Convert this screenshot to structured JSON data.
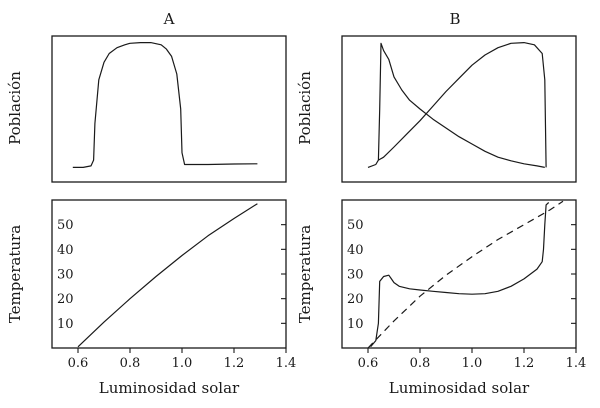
{
  "chart_data": [
    {
      "id": "A-top",
      "type": "line",
      "column_title": "A",
      "ylabel": "Población",
      "xlim": [
        0.5,
        1.4
      ],
      "ylim": [
        0,
        1
      ],
      "show_ticks": false,
      "series": [
        {
          "style": "solid",
          "x": [
            0.58,
            0.62,
            0.65,
            0.66,
            0.665,
            0.68,
            0.7,
            0.72,
            0.75,
            0.78,
            0.8,
            0.84,
            0.88,
            0.92,
            0.94,
            0.96,
            0.98,
            0.995,
            1.0,
            1.01,
            1.05,
            1.1,
            1.2,
            1.29
          ],
          "y": [
            0.1,
            0.1,
            0.11,
            0.15,
            0.4,
            0.7,
            0.82,
            0.88,
            0.92,
            0.94,
            0.95,
            0.955,
            0.955,
            0.94,
            0.91,
            0.86,
            0.74,
            0.5,
            0.2,
            0.12,
            0.12,
            0.12,
            0.123,
            0.125
          ]
        }
      ]
    },
    {
      "id": "B-top",
      "type": "line",
      "column_title": "B",
      "ylabel": "Población",
      "xlim": [
        0.5,
        1.4
      ],
      "ylim": [
        0,
        1
      ],
      "show_ticks": false,
      "series": [
        {
          "style": "solid",
          "x": [
            0.6,
            0.63,
            0.64,
            0.645,
            0.65,
            0.66,
            0.68,
            0.7,
            0.73,
            0.76,
            0.8,
            0.85,
            0.9,
            0.95,
            1.0,
            1.05,
            1.1,
            1.15,
            1.2,
            1.25,
            1.28
          ],
          "y": [
            0.1,
            0.12,
            0.15,
            0.5,
            0.95,
            0.9,
            0.84,
            0.72,
            0.63,
            0.56,
            0.5,
            0.43,
            0.37,
            0.31,
            0.26,
            0.21,
            0.17,
            0.145,
            0.125,
            0.11,
            0.1
          ]
        },
        {
          "style": "solid",
          "x": [
            0.64,
            0.66,
            0.7,
            0.75,
            0.8,
            0.85,
            0.9,
            0.95,
            1.0,
            1.05,
            1.1,
            1.15,
            1.2,
            1.24,
            1.27,
            1.28,
            1.285
          ],
          "y": [
            0.15,
            0.17,
            0.24,
            0.33,
            0.42,
            0.52,
            0.62,
            0.71,
            0.8,
            0.87,
            0.92,
            0.95,
            0.955,
            0.94,
            0.88,
            0.7,
            0.1
          ]
        }
      ]
    },
    {
      "id": "A-bottom",
      "type": "line",
      "xlabel": "Luminosidad solar",
      "ylabel": "Temperatura",
      "xlim": [
        0.5,
        1.4
      ],
      "ylim": [
        0,
        60
      ],
      "show_ticks": true,
      "xticks": [
        0.6,
        0.8,
        1.0,
        1.2,
        1.4
      ],
      "xtick_labels": [
        "0.6",
        "0.8",
        "1.0",
        "1.2",
        "1.4"
      ],
      "yticks": [
        10,
        20,
        30,
        40,
        50
      ],
      "ytick_labels": [
        "10",
        "20",
        "30",
        "40",
        "50"
      ],
      "series": [
        {
          "style": "solid",
          "x": [
            0.6,
            0.7,
            0.8,
            0.9,
            1.0,
            1.1,
            1.2,
            1.29
          ],
          "y": [
            0.5,
            10.5,
            20.0,
            29.0,
            37.5,
            45.5,
            52.5,
            58.5
          ]
        }
      ]
    },
    {
      "id": "B-bottom",
      "type": "line",
      "xlabel": "Luminosidad solar",
      "ylabel": "Temperatura",
      "xlim": [
        0.5,
        1.4
      ],
      "ylim": [
        0,
        60
      ],
      "show_ticks": true,
      "xticks": [
        0.6,
        0.8,
        1.0,
        1.2,
        1.4
      ],
      "xtick_labels": [
        "0.6",
        "0.8",
        "1.0",
        "1.2",
        "1.4"
      ],
      "yticks": [
        10,
        20,
        30,
        40,
        50
      ],
      "ytick_labels": [
        "10",
        "20",
        "30",
        "40",
        "50"
      ],
      "series": [
        {
          "style": "solid",
          "x": [
            0.61,
            0.63,
            0.64,
            0.645,
            0.66,
            0.68,
            0.69,
            0.7,
            0.72,
            0.76,
            0.8,
            0.85,
            0.9,
            0.95,
            1.0,
            1.05,
            1.1,
            1.15,
            1.2,
            1.25,
            1.27,
            1.275,
            1.28,
            1.285,
            1.295
          ],
          "y": [
            0.5,
            3.0,
            10.0,
            27.0,
            29.0,
            29.5,
            28.0,
            26.5,
            25.0,
            24.0,
            23.5,
            23.0,
            22.5,
            22.0,
            21.8,
            22.0,
            23.0,
            25.0,
            28.0,
            32.0,
            35.0,
            40.0,
            50.0,
            58.0,
            59.0
          ]
        },
        {
          "style": "dashed",
          "x": [
            0.6,
            0.7,
            0.8,
            0.9,
            1.0,
            1.1,
            1.2,
            1.3,
            1.35
          ],
          "y": [
            0.0,
            11.0,
            21.0,
            29.5,
            37.0,
            44.0,
            50.0,
            56.0,
            59.5
          ]
        }
      ]
    }
  ]
}
